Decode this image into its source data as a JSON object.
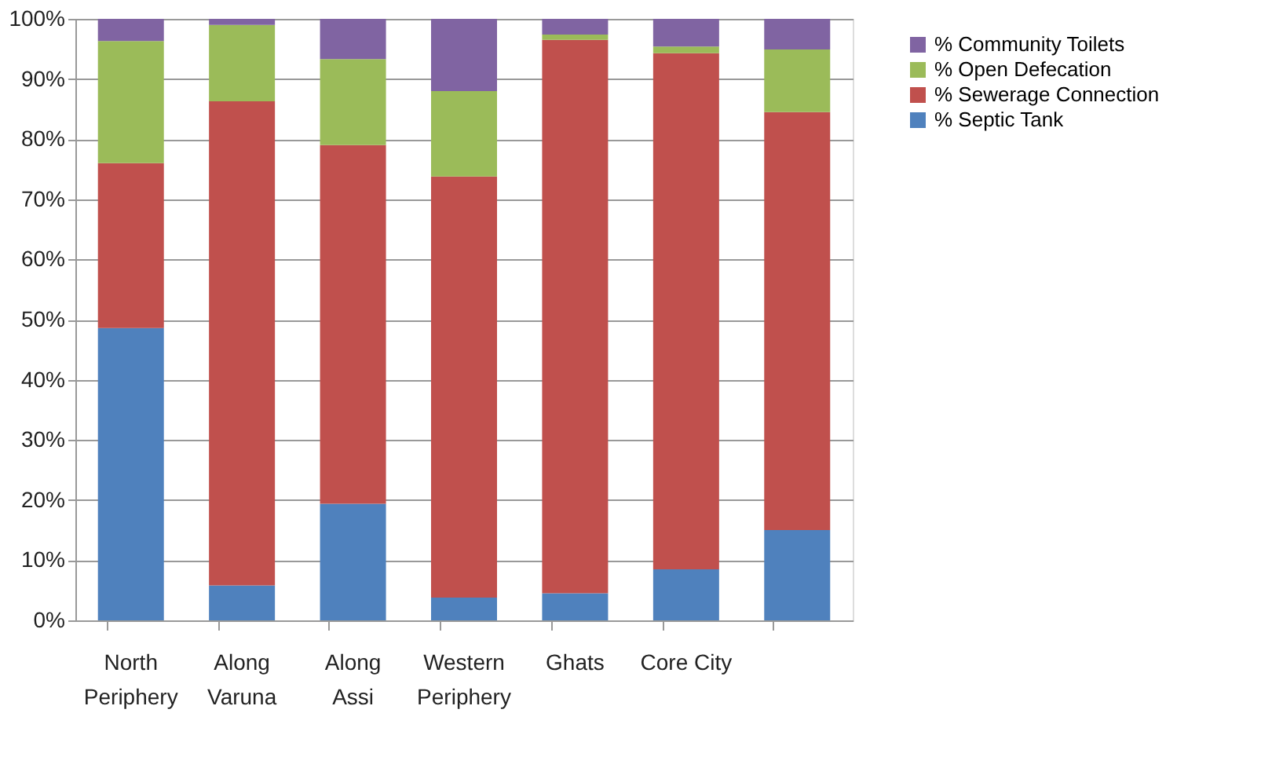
{
  "chart_data": {
    "type": "bar",
    "stacked": true,
    "categories": [
      "North Periphery",
      "Along Varuna",
      "Along Assi",
      "Western Periphery",
      "Ghats",
      "Core City",
      null
    ],
    "series": [
      {
        "name": "% Septic Tank",
        "color": "#4f81bd",
        "values": [
          48.6,
          5.8,
          19.4,
          3.8,
          4.5,
          8.5,
          15.0
        ]
      },
      {
        "name": "% Sewerage Connection",
        "color": "#c0504d",
        "values": [
          27.4,
          80.5,
          59.6,
          70.0,
          92.0,
          85.8,
          69.5
        ]
      },
      {
        "name": "% Open Defecation",
        "color": "#9bbb59",
        "values": [
          20.3,
          12.7,
          14.3,
          14.2,
          0.9,
          1.1,
          10.4
        ]
      },
      {
        "name": "% Community Toilets",
        "color": "#8064a2",
        "values": [
          3.7,
          1.0,
          6.7,
          12.0,
          2.6,
          4.6,
          5.1
        ]
      }
    ],
    "ylim": [
      0,
      100
    ],
    "yticks": [
      {
        "value": 0,
        "label": "0%"
      },
      {
        "value": 10,
        "label": "10%"
      },
      {
        "value": 20,
        "label": "20%"
      },
      {
        "value": 30,
        "label": "30%"
      },
      {
        "value": 40,
        "label": "40%"
      },
      {
        "value": 50,
        "label": "50%"
      },
      {
        "value": 60,
        "label": "60%"
      },
      {
        "value": 70,
        "label": "70%"
      },
      {
        "value": 80,
        "label": "80%"
      },
      {
        "value": 90,
        "label": "90%"
      },
      {
        "value": 100,
        "label": "100%"
      }
    ],
    "grid": "y",
    "legend": "right"
  }
}
